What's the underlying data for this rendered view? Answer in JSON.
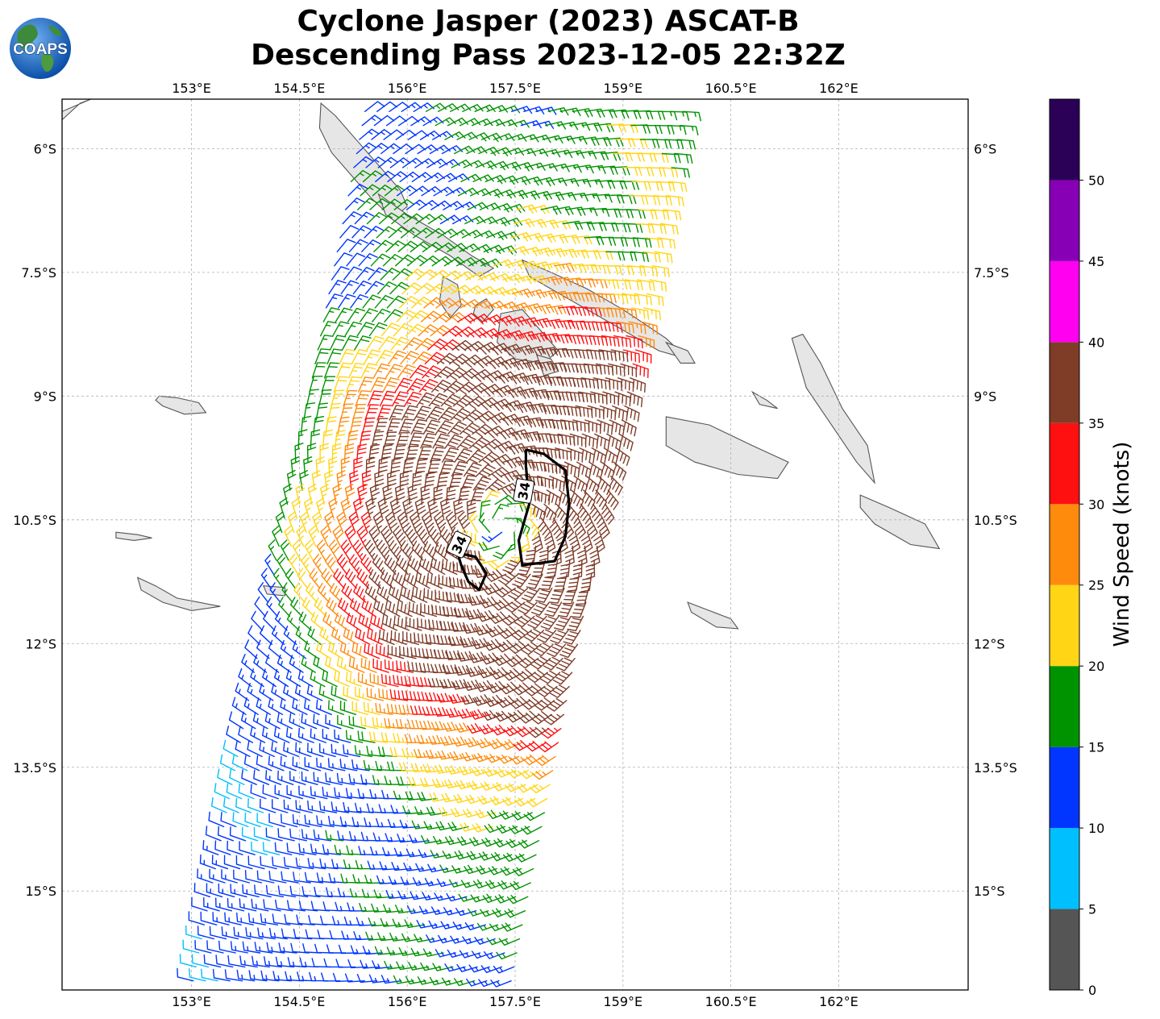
{
  "title": {
    "line1": "Cyclone Jasper (2023) ASCAT-B",
    "line2": "Descending Pass 2023-12-05 22:32Z"
  },
  "logo": {
    "text": "COAPS",
    "icon": "globe-logo-icon"
  },
  "map": {
    "lon_range": [
      151.2,
      163.8
    ],
    "lat_range": [
      -16.2,
      -5.4
    ],
    "lon_ticks": [
      {
        "value": 153,
        "label": "153°E"
      },
      {
        "value": 154.5,
        "label": "154.5°E"
      },
      {
        "value": 156,
        "label": "156°E"
      },
      {
        "value": 157.5,
        "label": "157.5°E"
      },
      {
        "value": 159,
        "label": "159°E"
      },
      {
        "value": 160.5,
        "label": "160.5°E"
      },
      {
        "value": 162,
        "label": "162°E"
      }
    ],
    "lat_ticks": [
      {
        "value": -6,
        "label": "6°S"
      },
      {
        "value": -7.5,
        "label": "7.5°S"
      },
      {
        "value": -9,
        "label": "9°S"
      },
      {
        "value": -10.5,
        "label": "10.5°S"
      },
      {
        "value": -12,
        "label": "12°S"
      },
      {
        "value": -13.5,
        "label": "13.5°S"
      },
      {
        "value": -15,
        "label": "15°S"
      }
    ],
    "gridlines": true,
    "storm_center": {
      "lon": 157.3,
      "lat": -10.6
    },
    "contour_labels": [
      "34",
      "34"
    ],
    "land_color": "#e6e6e6",
    "coast_color": "#555555"
  },
  "colorbar": {
    "label": "Wind Speed (knots)",
    "ticks": [
      "0",
      "5",
      "10",
      "15",
      "20",
      "25",
      "30",
      "35",
      "40",
      "45",
      "50"
    ],
    "bins": [
      {
        "min": 0,
        "max": 5,
        "color": "#555555"
      },
      {
        "min": 5,
        "max": 10,
        "color": "#00bfff"
      },
      {
        "min": 10,
        "max": 15,
        "color": "#0036ff"
      },
      {
        "min": 15,
        "max": 20,
        "color": "#009300"
      },
      {
        "min": 20,
        "max": 25,
        "color": "#ffd516"
      },
      {
        "min": 25,
        "max": 30,
        "color": "#ff8b0d"
      },
      {
        "min": 30,
        "max": 35,
        "color": "#ff1010"
      },
      {
        "min": 35,
        "max": 40,
        "color": "#7f3c27"
      },
      {
        "min": 40,
        "max": 45,
        "color": "#ff00f0"
      },
      {
        "min": 45,
        "max": 50,
        "color": "#8700b5"
      },
      {
        "min": 50,
        "max": 55,
        "color": "#2b0057"
      }
    ]
  }
}
